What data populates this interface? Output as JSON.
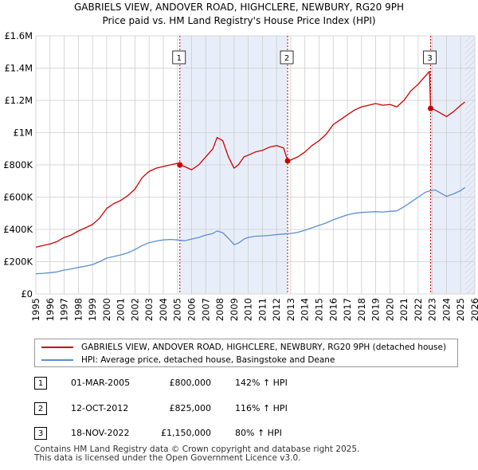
{
  "title_line1": "GABRIELS VIEW, ANDOVER ROAD, HIGHCLERE, NEWBURY, RG20 9PH",
  "title_line2": "Price paid vs. HM Land Registry's House Price Index (HPI)",
  "colors": {
    "property": "#cc0000",
    "hpi": "#5b8ed6",
    "shade": "#e8eef9",
    "marker_line": "#cc0000",
    "grid": "#cccccc"
  },
  "chart_data": {
    "type": "line",
    "title": "GABRIELS VIEW, ANDOVER ROAD, HIGHCLERE, NEWBURY, RG20 9PH — Price paid vs. HM Land Registry's House Price Index (HPI)",
    "xlim": [
      1995,
      2026
    ],
    "ylim": [
      0,
      1600000
    ],
    "y_ticks": [
      0,
      200000,
      400000,
      600000,
      800000,
      1000000,
      1200000,
      1400000,
      1600000
    ],
    "y_tick_labels": [
      "£0",
      "£200K",
      "£400K",
      "£600K",
      "£800K",
      "£1M",
      "£1.2M",
      "£1.4M",
      "£1.6M"
    ],
    "x_ticks": [
      1995,
      1996,
      1997,
      1998,
      1999,
      2000,
      2001,
      2002,
      2003,
      2004,
      2005,
      2006,
      2007,
      2008,
      2009,
      2010,
      2011,
      2012,
      2013,
      2014,
      2015,
      2016,
      2017,
      2018,
      2019,
      2020,
      2021,
      2022,
      2023,
      2024,
      2025,
      2026
    ],
    "x_tick_labels": [
      "1995",
      "1996",
      "1997",
      "1998",
      "1999",
      "2000",
      "2001",
      "2002",
      "2003",
      "2004",
      "2005",
      "2006",
      "2007",
      "2008",
      "2009",
      "2010",
      "2011",
      "2012",
      "2013",
      "2014",
      "2015",
      "2016",
      "2017",
      "2018",
      "2019",
      "2020",
      "2021",
      "2022",
      "2023",
      "2024",
      "2025",
      "2026"
    ],
    "shaded_ranges": [
      [
        2005.17,
        2012.78
      ],
      [
        2022.88,
        2026
      ]
    ],
    "hatched_from": 2025.3,
    "series": [
      {
        "name": "GABRIELS VIEW, ANDOVER ROAD, HIGHCLERE, NEWBURY, RG20 9PH (detached house)",
        "color": "#cc0000",
        "x": [
          1995.0,
          1995.5,
          1996.0,
          1996.5,
          1997.0,
          1997.5,
          1998.0,
          1998.5,
          1999.0,
          1999.5,
          2000.0,
          2000.5,
          2001.0,
          2001.5,
          2002.0,
          2002.5,
          2003.0,
          2003.5,
          2004.0,
          2004.5,
          2005.0,
          2005.17,
          2005.5,
          2006.0,
          2006.5,
          2007.0,
          2007.5,
          2007.8,
          2008.2,
          2008.6,
          2009.0,
          2009.3,
          2009.7,
          2010.0,
          2010.5,
          2011.0,
          2011.5,
          2012.0,
          2012.5,
          2012.78,
          2013.0,
          2013.5,
          2014.0,
          2014.5,
          2015.0,
          2015.5,
          2016.0,
          2016.5,
          2017.0,
          2017.5,
          2018.0,
          2018.5,
          2019.0,
          2019.5,
          2020.0,
          2020.5,
          2021.0,
          2021.5,
          2022.0,
          2022.3,
          2022.6,
          2022.8,
          2022.88,
          2023.2,
          2023.6,
          2024.0,
          2024.5,
          2025.0,
          2025.3
        ],
        "values": [
          290000,
          300000,
          310000,
          325000,
          350000,
          365000,
          390000,
          410000,
          430000,
          470000,
          530000,
          560000,
          580000,
          610000,
          650000,
          720000,
          760000,
          780000,
          790000,
          800000,
          810000,
          800000,
          790000,
          770000,
          800000,
          850000,
          900000,
          970000,
          950000,
          850000,
          780000,
          800000,
          850000,
          860000,
          880000,
          890000,
          910000,
          920000,
          905000,
          825000,
          830000,
          850000,
          880000,
          920000,
          950000,
          990000,
          1050000,
          1080000,
          1110000,
          1140000,
          1160000,
          1170000,
          1180000,
          1170000,
          1175000,
          1160000,
          1200000,
          1260000,
          1300000,
          1330000,
          1360000,
          1380000,
          1150000,
          1140000,
          1120000,
          1100000,
          1130000,
          1170000,
          1190000
        ]
      },
      {
        "name": "HPI: Average price, detached house, Basingstoke and Deane",
        "color": "#5b8ed6",
        "x": [
          1995.0,
          1995.5,
          1996.0,
          1996.5,
          1997.0,
          1997.5,
          1998.0,
          1998.5,
          1999.0,
          1999.5,
          2000.0,
          2000.5,
          2001.0,
          2001.5,
          2002.0,
          2002.5,
          2003.0,
          2003.5,
          2004.0,
          2004.5,
          2005.0,
          2005.5,
          2006.0,
          2006.5,
          2007.0,
          2007.5,
          2007.8,
          2008.2,
          2008.6,
          2009.0,
          2009.3,
          2009.7,
          2010.0,
          2010.5,
          2011.0,
          2011.5,
          2012.0,
          2012.5,
          2013.0,
          2013.5,
          2014.0,
          2014.5,
          2015.0,
          2015.5,
          2016.0,
          2016.5,
          2017.0,
          2017.5,
          2018.0,
          2018.5,
          2019.0,
          2019.5,
          2020.0,
          2020.5,
          2021.0,
          2021.5,
          2022.0,
          2022.5,
          2022.88,
          2023.2,
          2023.6,
          2024.0,
          2024.5,
          2025.0,
          2025.3
        ],
        "values": [
          125000,
          128000,
          132000,
          137000,
          148000,
          155000,
          165000,
          172000,
          182000,
          200000,
          222000,
          232000,
          242000,
          255000,
          275000,
          300000,
          318000,
          328000,
          335000,
          338000,
          335000,
          330000,
          340000,
          350000,
          365000,
          375000,
          390000,
          380000,
          345000,
          305000,
          315000,
          340000,
          350000,
          358000,
          360000,
          363000,
          368000,
          372000,
          375000,
          382000,
          395000,
          410000,
          425000,
          440000,
          460000,
          475000,
          490000,
          500000,
          505000,
          508000,
          510000,
          508000,
          512000,
          515000,
          540000,
          570000,
          600000,
          630000,
          640000,
          645000,
          625000,
          605000,
          620000,
          640000,
          660000
        ]
      }
    ],
    "markers": [
      {
        "label": "1",
        "x": 2005.17,
        "y": 800000
      },
      {
        "label": "2",
        "x": 2012.78,
        "y": 825000
      },
      {
        "label": "3",
        "x": 2022.88,
        "y": 1150000
      }
    ]
  },
  "legend": {
    "property_label": "GABRIELS VIEW, ANDOVER ROAD, HIGHCLERE, NEWBURY, RG20 9PH (detached house)",
    "hpi_label": "HPI: Average price, detached house, Basingstoke and Deane"
  },
  "transactions": [
    {
      "num": "1",
      "date": "01-MAR-2005",
      "price": "£800,000",
      "hpi": "142% ↑ HPI"
    },
    {
      "num": "2",
      "date": "12-OCT-2012",
      "price": "£825,000",
      "hpi": "116% ↑ HPI"
    },
    {
      "num": "3",
      "date": "18-NOV-2022",
      "price": "£1,150,000",
      "hpi": "80% ↑ HPI"
    }
  ],
  "footer": {
    "line1": "Contains HM Land Registry data © Crown copyright and database right 2025.",
    "line2": "This data is licensed under the Open Government Licence v3.0."
  }
}
